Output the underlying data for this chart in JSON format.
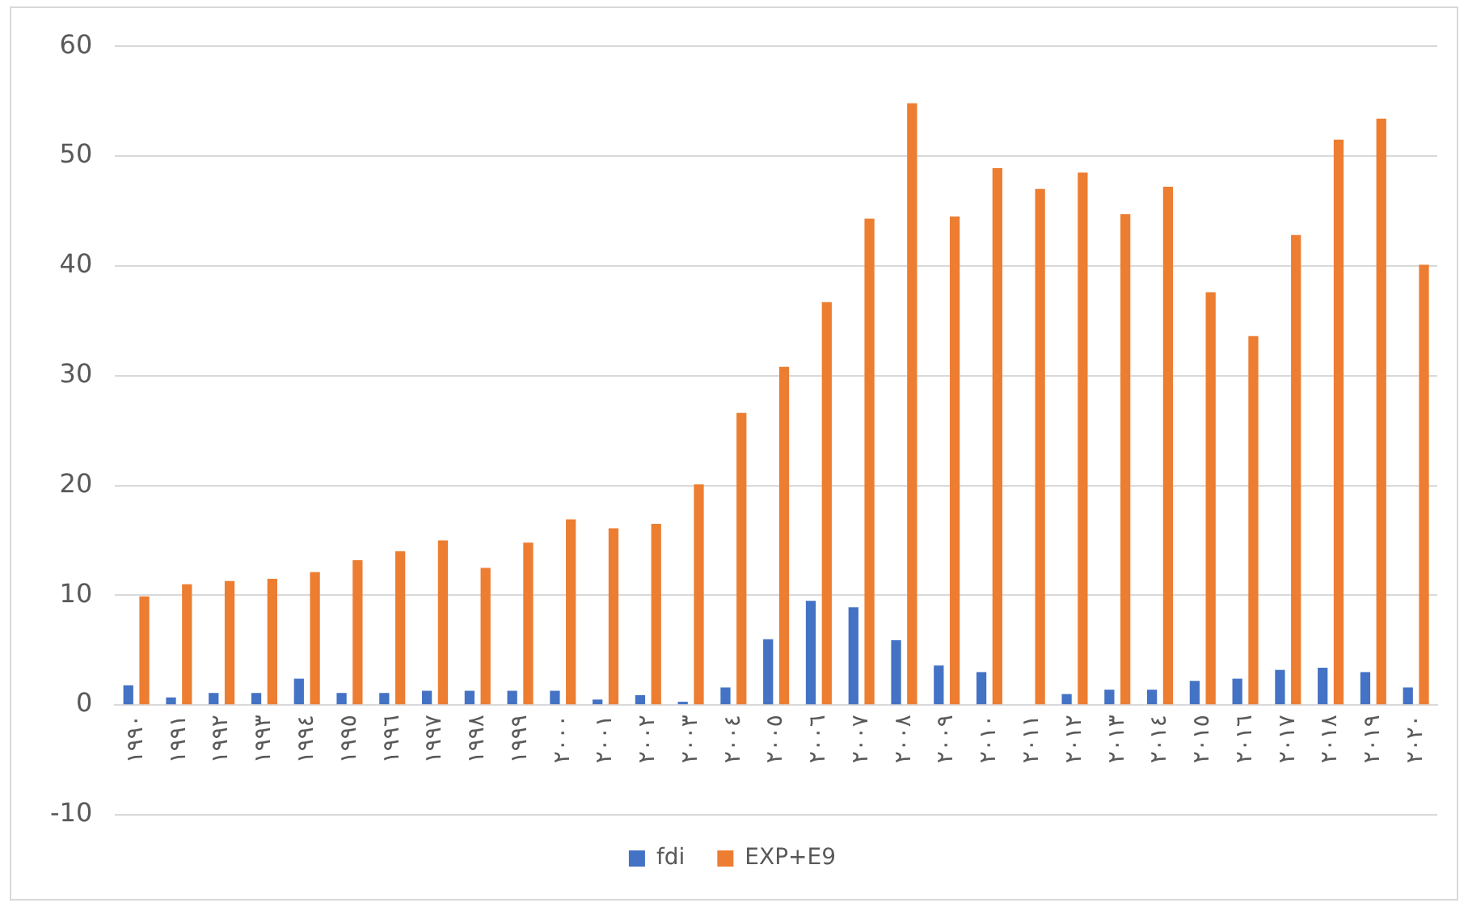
{
  "chart_data": {
    "type": "bar",
    "categories": [
      "١٩٩٠",
      "١٩٩١",
      "١٩٩٢",
      "١٩٩٣",
      "١٩٩٤",
      "١٩٩٥",
      "١٩٩٦",
      "١٩٩٧",
      "١٩٩٨",
      "١٩٩٩",
      "٢٠٠٠",
      "٢٠٠١",
      "٢٠٠٢",
      "٢٠٠٣",
      "٢٠٠٤",
      "٢٠٠٥",
      "٢٠٠٦",
      "٢٠٠٧",
      "٢٠٠٨",
      "٢٠٠٩",
      "٢٠١٠",
      "٢٠١١",
      "٢٠١٢",
      "٢٠١٣",
      "٢٠١٤",
      "٢٠١٥",
      "٢٠١٦",
      "٢٠١٧",
      "٢٠١٨",
      "٢٠١٩",
      "٢٠٢٠"
    ],
    "series": [
      {
        "name": "fdi",
        "color": "#4472c4",
        "values": [
          1.8,
          0.7,
          1.1,
          1.1,
          2.4,
          1.1,
          1.1,
          1.3,
          1.3,
          1.3,
          1.3,
          0.5,
          0.9,
          0.3,
          1.6,
          6.0,
          9.5,
          8.9,
          5.9,
          3.6,
          3.0,
          0,
          1.0,
          1.4,
          1.4,
          2.2,
          2.4,
          3.2,
          3.4,
          3.0,
          1.6
        ]
      },
      {
        "name": "EXP+E9",
        "color": "#ed7d31",
        "values": [
          9.9,
          11.0,
          11.3,
          11.5,
          12.1,
          13.2,
          14.0,
          15.0,
          12.5,
          14.8,
          16.9,
          16.1,
          16.5,
          20.1,
          26.6,
          30.8,
          36.7,
          44.3,
          54.8,
          44.5,
          48.9,
          47.0,
          48.5,
          44.7,
          47.2,
          37.6,
          33.6,
          42.8,
          51.5,
          53.4,
          40.1
        ]
      }
    ],
    "ylim": [
      -10,
      60
    ],
    "yticks": [
      -10,
      0,
      10,
      20,
      30,
      40,
      50,
      60
    ],
    "grid": "y",
    "legend": "bottom"
  }
}
